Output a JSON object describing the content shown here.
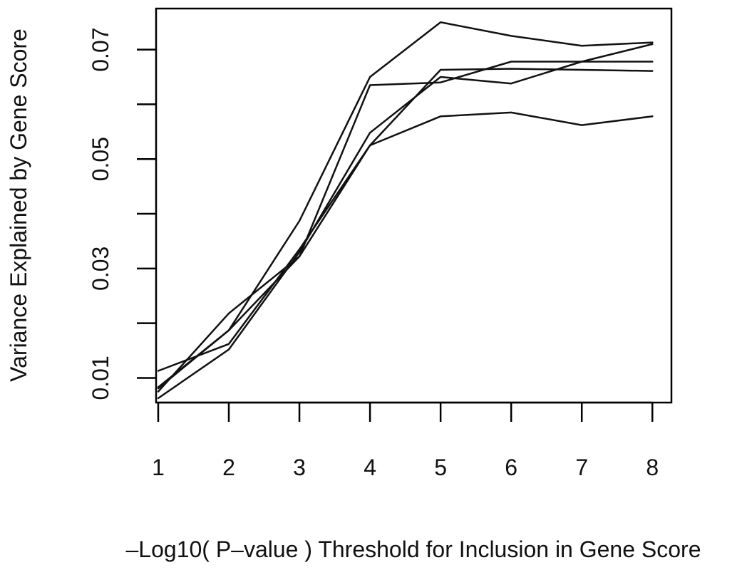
{
  "chart_data": {
    "type": "line",
    "title": "",
    "xlabel": "–Log10( P–value ) Threshold for Inclusion in Gene Score",
    "ylabel": "Variance Explained by Gene Score",
    "x": [
      1,
      2,
      3,
      4,
      5,
      6,
      7,
      8
    ],
    "x_ticks": [
      1,
      2,
      3,
      4,
      5,
      6,
      7,
      8
    ],
    "y_ticks": [
      0.01,
      0.02,
      0.03,
      0.04,
      0.05,
      0.06,
      0.07
    ],
    "y_tick_labels": [
      "0.01",
      "",
      "0.03",
      "",
      "0.05",
      "",
      "0.07"
    ],
    "xlim": [
      0.97,
      8.27
    ],
    "ylim": [
      0.0055,
      0.0775
    ],
    "grid": false,
    "legend": "none",
    "line_color": "#111111",
    "series": [
      {
        "values": [
          0.0083,
          0.0187,
          0.0387,
          0.065,
          0.075,
          0.0725,
          0.0707,
          0.0713
        ]
      },
      {
        "values": [
          0.0075,
          0.0218,
          0.0322,
          0.0635,
          0.064,
          0.0678,
          0.0678,
          0.0678
        ]
      },
      {
        "values": [
          0.0063,
          0.0152,
          0.033,
          0.0548,
          0.065,
          0.0638,
          0.0678,
          0.071
        ]
      },
      {
        "values": [
          0.0113,
          0.0162,
          0.0335,
          0.0525,
          0.0663,
          0.0665,
          0.0663,
          0.0661
        ]
      },
      {
        "values": [
          0.0081,
          0.0187,
          0.0322,
          0.0525,
          0.0578,
          0.0585,
          0.0562,
          0.0578
        ]
      }
    ]
  }
}
